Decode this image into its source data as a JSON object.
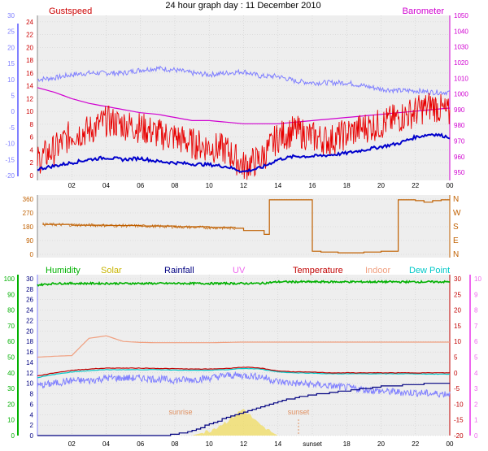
{
  "title": "24 hour graph day : 11 December 2010",
  "x_ticks": [
    "02",
    "04",
    "06",
    "08",
    "10",
    "12",
    "14",
    "16",
    "18",
    "20",
    "22",
    "00"
  ],
  "bottom_x_ticks": [
    "02",
    "04",
    "06",
    "08",
    "10",
    "12",
    "14",
    "sunset",
    "18",
    "20",
    "22",
    "00"
  ],
  "colors": {
    "gust": "#e80000",
    "wind": "#0000cc",
    "baro": "#d000d0",
    "blue_axis": "#8080ff",
    "dir": "#c06000",
    "humidity": "#00b000",
    "solar": "#c8b400",
    "rain": "#000080",
    "uv": "#ee66ee",
    "temp": "#c00000",
    "indoor": "#f0a080",
    "dew": "#00c8c8",
    "plot_bg": "#eeeeee",
    "grid": "#cccccc"
  },
  "chart_data": [
    {
      "type": "line",
      "panel": "wind_barometer",
      "title": "24 hour graph day : 11 December 2010",
      "legend": [
        "Gustspeed",
        "Barometer"
      ],
      "x_hours": [
        0,
        1,
        2,
        3,
        4,
        5,
        6,
        7,
        8,
        9,
        10,
        11,
        12,
        13,
        14,
        15,
        16,
        17,
        18,
        19,
        20,
        21,
        22,
        23,
        24
      ],
      "left_axis": {
        "ticks": [
          "0",
          "2",
          "4",
          "6",
          "8",
          "10",
          "12",
          "14",
          "16",
          "18",
          "20",
          "22",
          "24"
        ],
        "ylim": [
          0,
          25
        ]
      },
      "left_axis_outer": {
        "ticks": [
          "-20",
          "-15",
          "-10",
          "-5",
          "0",
          "5",
          "10",
          "15",
          "20",
          "25",
          "30"
        ]
      },
      "right_axis": {
        "ticks": [
          "950",
          "960",
          "970",
          "980",
          "990",
          "1000",
          "1010",
          "1020",
          "1030",
          "1040",
          "1050"
        ],
        "ylim": [
          948,
          1050
        ]
      },
      "series": [
        {
          "name": "Gustspeed",
          "axis": "left",
          "values": [
            2.5,
            4,
            6.5,
            7,
            8.5,
            8,
            7.5,
            6.5,
            6,
            5,
            4.5,
            4,
            1.5,
            2.5,
            6,
            7,
            6,
            5.5,
            6.5,
            7.5,
            8,
            9,
            10,
            11,
            9.5
          ]
        },
        {
          "name": "Average speed",
          "axis": "left",
          "values": [
            1,
            1.5,
            2,
            2.5,
            2.8,
            2.5,
            2.7,
            2.2,
            2,
            1.8,
            1.7,
            1.4,
            0.6,
            1.2,
            2.5,
            3,
            3,
            3.2,
            3.5,
            4,
            4.5,
            5,
            6,
            6.5,
            6
          ]
        },
        {
          "name": "Barometer",
          "axis": "right",
          "values": [
            1004,
            1001,
            997,
            994,
            992,
            990,
            988,
            987,
            985,
            983,
            983,
            982,
            981,
            981,
            981,
            982,
            983,
            984,
            985,
            986,
            987,
            988,
            989,
            990,
            991
          ]
        },
        {
          "name": "Outer (light blue)",
          "axis": "left_outer",
          "values": [
            10,
            10.5,
            11.5,
            12,
            12,
            12,
            13,
            13.5,
            13,
            12,
            11.5,
            12,
            12.5,
            11,
            11,
            9.5,
            9,
            9,
            9,
            8,
            7,
            6.5,
            6.5,
            6,
            6
          ]
        }
      ]
    },
    {
      "type": "line",
      "panel": "wind_direction",
      "left_axis": {
        "ticks": [
          "0",
          "90",
          "180",
          "270",
          "360"
        ],
        "ylim": [
          0,
          360
        ]
      },
      "right_axis": {
        "ticks": [
          "N",
          "W",
          "S",
          "E",
          "N"
        ]
      },
      "x_hours": [
        0.3,
        2,
        4,
        6,
        8,
        10,
        11.5,
        12,
        13.2,
        13.5,
        14.5,
        15,
        16,
        16.5,
        17.5,
        18,
        19,
        20,
        21,
        22,
        22.5,
        23,
        23.5,
        24
      ],
      "values": [
        195,
        190,
        188,
        185,
        180,
        175,
        170,
        155,
        130,
        355,
        355,
        355,
        20,
        15,
        10,
        10,
        15,
        20,
        355,
        350,
        340,
        350,
        355,
        355
      ]
    },
    {
      "type": "line",
      "panel": "humidity_temperature",
      "legend": [
        "Humidity",
        "Solar",
        "Rainfall",
        "UV",
        "Temperature",
        "Indoor",
        "Dew Point"
      ],
      "x_hours": [
        0,
        1,
        2,
        3,
        4,
        5,
        6,
        7,
        8,
        9,
        10,
        11,
        12,
        13,
        14,
        15,
        16,
        17,
        18,
        19,
        20,
        21,
        22,
        23,
        24
      ],
      "left_axis_outer": {
        "ticks": [
          "0",
          "10",
          "20",
          "30",
          "40",
          "50",
          "60",
          "70",
          "80",
          "90",
          "100"
        ],
        "ylim": [
          0,
          100
        ]
      },
      "left_axis_inner": {
        "ticks": [
          "0",
          "2",
          "4",
          "6",
          "8",
          "10",
          "12",
          "14",
          "16",
          "18",
          "20",
          "22",
          "24",
          "26",
          "28",
          "30"
        ],
        "ylim": [
          0,
          30
        ]
      },
      "right_axis_temp": {
        "ticks": [
          "-20",
          "-15",
          "-10",
          "-5",
          "0",
          "5",
          "10",
          "15",
          "20",
          "25",
          "30"
        ],
        "ylim": [
          -20,
          30
        ]
      },
      "right_axis_uv": {
        "ticks": [
          "0",
          "1",
          "2",
          "3",
          "4",
          "5",
          "6",
          "7",
          "8",
          "9",
          "10"
        ],
        "ylim": [
          0,
          10
        ]
      },
      "annotations": [
        "sunrise",
        "sunset"
      ],
      "series": [
        {
          "name": "Humidity",
          "axis": "left_outer",
          "values": [
            96,
            97,
            97,
            97,
            97,
            97,
            97,
            97,
            97,
            97,
            97,
            97,
            97,
            97,
            98,
            98,
            98,
            98,
            98,
            98,
            98,
            98,
            98,
            98,
            98
          ]
        },
        {
          "name": "Temperature",
          "axis": "right_temp",
          "values": [
            -1,
            0,
            0.8,
            1.2,
            1.5,
            1.5,
            1.5,
            1.4,
            1.3,
            1.2,
            1.2,
            1.4,
            1.8,
            1.5,
            0.6,
            0.3,
            0.2,
            0,
            0,
            0,
            0,
            0,
            0,
            0,
            0
          ]
        },
        {
          "name": "Dew Point",
          "axis": "right_temp",
          "values": [
            -1.5,
            -0.5,
            0.3,
            0.7,
            1,
            1,
            1,
            1,
            0.9,
            0.8,
            0.8,
            1,
            1.4,
            1.2,
            0.3,
            0,
            -0.1,
            -0.3,
            -0.3,
            -0.3,
            -0.3,
            -0.3,
            -0.3,
            -0.4,
            -0.4
          ]
        },
        {
          "name": "Indoor",
          "axis": "right_temp",
          "values": [
            5,
            5.3,
            5.5,
            11,
            11.8,
            10,
            9.7,
            9.6,
            9.6,
            9.6,
            9.6,
            9.7,
            9.8,
            9.8,
            9.8,
            9.8,
            9.8,
            9.8,
            9.8,
            9.8,
            9.8,
            9.8,
            9.8,
            9.8,
            9.8
          ]
        },
        {
          "name": "Rainfall",
          "axis": "left_inner",
          "values": [
            0,
            0,
            0,
            0,
            0,
            0,
            0,
            0,
            0.2,
            1,
            2.2,
            3.5,
            4.5,
            5.5,
            6.5,
            7.3,
            7.8,
            8.2,
            8.6,
            9,
            9.4,
            9.6,
            9.8,
            10,
            10
          ]
        },
        {
          "name": "Light blue",
          "axis": "left_inner",
          "values": [
            9.5,
            10,
            10.5,
            10.5,
            11,
            11,
            11,
            10.8,
            10.6,
            10.7,
            11,
            11.5,
            11.5,
            11.3,
            10.3,
            10,
            9.8,
            9.5,
            9.2,
            8.8,
            8.5,
            8.3,
            8.2,
            8,
            8
          ]
        },
        {
          "name": "Solar",
          "axis": "right_uv",
          "values": [
            0,
            0,
            0,
            0,
            0,
            0,
            0,
            0,
            0,
            0,
            0.3,
            0.9,
            1.7,
            0.6,
            0,
            0,
            0,
            0,
            0,
            0,
            0,
            0,
            0,
            0,
            0
          ]
        }
      ]
    }
  ]
}
